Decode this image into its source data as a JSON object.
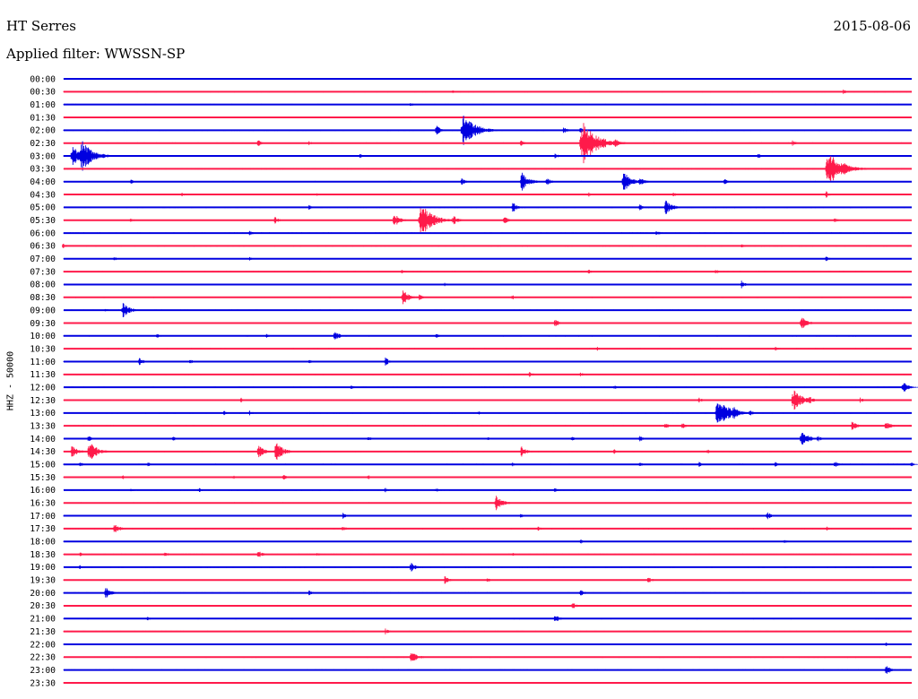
{
  "header": {
    "station": "HT Serres",
    "date": "2015-08-06",
    "filter": "Applied filter: WWSSN-SP"
  },
  "chart_data": {
    "type": "line",
    "title": "HT Serres",
    "ylabel": "HHZ - 50000",
    "colors": [
      "#0000e0",
      "#ff1a4a"
    ],
    "rows": [
      {
        "label": "00:00",
        "events": []
      },
      {
        "label": "00:30",
        "events": [
          [
            0.46,
            0.2
          ],
          [
            0.92,
            0.3
          ]
        ]
      },
      {
        "label": "01:00",
        "events": [
          [
            0.41,
            0.25
          ]
        ]
      },
      {
        "label": "01:30",
        "events": []
      },
      {
        "label": "02:00",
        "events": [
          [
            0.44,
            0.6
          ],
          [
            0.47,
            1.9
          ],
          [
            0.59,
            0.45
          ],
          [
            0.61,
            0.4
          ]
        ]
      },
      {
        "label": "02:30",
        "events": [
          [
            0.23,
            0.4
          ],
          [
            0.29,
            0.3
          ],
          [
            0.54,
            0.35
          ],
          [
            0.61,
            2.4
          ],
          [
            0.65,
            0.6
          ],
          [
            0.86,
            0.35
          ]
        ]
      },
      {
        "label": "03:00",
        "events": [
          [
            0.01,
            1.2
          ],
          [
            0.02,
            1.8
          ],
          [
            0.35,
            0.3
          ],
          [
            0.58,
            0.35
          ],
          [
            0.82,
            0.35
          ]
        ]
      },
      {
        "label": "03:30",
        "events": [
          [
            0.9,
            2.1
          ],
          [
            0.92,
            0.8
          ]
        ]
      },
      {
        "label": "04:00",
        "events": [
          [
            0.08,
            0.3
          ],
          [
            0.47,
            0.45
          ],
          [
            0.54,
            1.1
          ],
          [
            0.57,
            0.5
          ],
          [
            0.66,
            1.2
          ],
          [
            0.68,
            0.6
          ],
          [
            0.78,
            0.35
          ]
        ]
      },
      {
        "label": "04:30",
        "events": [
          [
            0.14,
            0.3
          ],
          [
            0.3,
            0.2
          ],
          [
            0.62,
            0.3
          ],
          [
            0.72,
            0.3
          ],
          [
            0.9,
            0.4
          ]
        ]
      },
      {
        "label": "05:00",
        "events": [
          [
            0.29,
            0.3
          ],
          [
            0.53,
            0.6
          ],
          [
            0.68,
            0.4
          ],
          [
            0.71,
            0.9
          ]
        ]
      },
      {
        "label": "05:30",
        "events": [
          [
            0.08,
            0.3
          ],
          [
            0.25,
            0.4
          ],
          [
            0.39,
            0.8
          ],
          [
            0.42,
            1.9
          ],
          [
            0.46,
            0.6
          ],
          [
            0.52,
            0.5
          ],
          [
            0.91,
            0.3
          ]
        ]
      },
      {
        "label": "06:00",
        "events": [
          [
            0.22,
            0.35
          ],
          [
            0.7,
            0.35
          ]
        ]
      },
      {
        "label": "06:30",
        "events": [
          [
            0.0,
            0.3
          ],
          [
            0.8,
            0.25
          ]
        ]
      },
      {
        "label": "07:00",
        "events": [
          [
            0.06,
            0.3
          ],
          [
            0.22,
            0.25
          ],
          [
            0.9,
            0.3
          ]
        ]
      },
      {
        "label": "07:30",
        "events": [
          [
            0.4,
            0.3
          ],
          [
            0.62,
            0.3
          ],
          [
            0.77,
            0.3
          ]
        ]
      },
      {
        "label": "08:00",
        "events": [
          [
            0.45,
            0.25
          ],
          [
            0.8,
            0.45
          ]
        ]
      },
      {
        "label": "08:30",
        "events": [
          [
            0.4,
            0.9
          ],
          [
            0.42,
            0.4
          ],
          [
            0.53,
            0.3
          ]
        ]
      },
      {
        "label": "09:00",
        "events": [
          [
            0.05,
            0.3
          ],
          [
            0.07,
            0.9
          ]
        ]
      },
      {
        "label": "09:30",
        "events": [
          [
            0.58,
            0.5
          ],
          [
            0.87,
            0.8
          ]
        ]
      },
      {
        "label": "10:00",
        "events": [
          [
            0.11,
            0.35
          ],
          [
            0.24,
            0.3
          ],
          [
            0.32,
            0.6
          ],
          [
            0.44,
            0.3
          ]
        ]
      },
      {
        "label": "10:30",
        "events": [
          [
            0.63,
            0.3
          ],
          [
            0.84,
            0.25
          ]
        ]
      },
      {
        "label": "11:00",
        "events": [
          [
            0.09,
            0.5
          ],
          [
            0.15,
            0.3
          ],
          [
            0.29,
            0.3
          ],
          [
            0.38,
            0.5
          ]
        ]
      },
      {
        "label": "11:30",
        "events": [
          [
            0.55,
            0.4
          ],
          [
            0.61,
            0.3
          ]
        ]
      },
      {
        "label": "12:00",
        "events": [
          [
            0.34,
            0.25
          ],
          [
            0.65,
            0.25
          ],
          [
            0.99,
            0.7
          ]
        ]
      },
      {
        "label": "12:30",
        "events": [
          [
            0.21,
            0.3
          ],
          [
            0.75,
            0.35
          ],
          [
            0.86,
            1.3
          ],
          [
            0.88,
            0.5
          ],
          [
            0.94,
            0.35
          ]
        ]
      },
      {
        "label": "13:00",
        "events": [
          [
            0.19,
            0.3
          ],
          [
            0.22,
            0.3
          ],
          [
            0.49,
            0.25
          ],
          [
            0.77,
            1.8
          ],
          [
            0.79,
            0.8
          ],
          [
            0.81,
            0.4
          ]
        ]
      },
      {
        "label": "13:30",
        "events": [
          [
            0.71,
            0.4
          ],
          [
            0.73,
            0.4
          ],
          [
            0.93,
            0.6
          ],
          [
            0.97,
            0.6
          ]
        ]
      },
      {
        "label": "14:00",
        "events": [
          [
            0.03,
            0.4
          ],
          [
            0.13,
            0.3
          ],
          [
            0.36,
            0.3
          ],
          [
            0.5,
            0.3
          ],
          [
            0.6,
            0.3
          ],
          [
            0.68,
            0.4
          ],
          [
            0.87,
            1.0
          ],
          [
            0.89,
            0.4
          ]
        ]
      },
      {
        "label": "14:30",
        "events": [
          [
            0.01,
            0.8
          ],
          [
            0.03,
            1.2
          ],
          [
            0.23,
            0.8
          ],
          [
            0.25,
            1.1
          ],
          [
            0.54,
            0.7
          ],
          [
            0.65,
            0.3
          ],
          [
            0.76,
            0.3
          ]
        ]
      },
      {
        "label": "15:00",
        "events": [
          [
            0.02,
            0.3
          ],
          [
            0.1,
            0.3
          ],
          [
            0.53,
            0.3
          ],
          [
            0.68,
            0.3
          ],
          [
            0.75,
            0.3
          ],
          [
            0.84,
            0.3
          ],
          [
            0.91,
            0.4
          ],
          [
            1.0,
            0.3
          ]
        ]
      },
      {
        "label": "15:30",
        "events": [
          [
            0.07,
            0.3
          ],
          [
            0.2,
            0.3
          ],
          [
            0.26,
            0.35
          ],
          [
            0.36,
            0.3
          ]
        ]
      },
      {
        "label": "16:00",
        "events": [
          [
            0.08,
            0.3
          ],
          [
            0.16,
            0.3
          ],
          [
            0.38,
            0.3
          ],
          [
            0.44,
            0.3
          ],
          [
            0.58,
            0.3
          ]
        ]
      },
      {
        "label": "16:30",
        "events": [
          [
            0.51,
            0.9
          ]
        ]
      },
      {
        "label": "17:00",
        "events": [
          [
            0.33,
            0.4
          ],
          [
            0.54,
            0.3
          ],
          [
            0.83,
            0.5
          ]
        ]
      },
      {
        "label": "17:30",
        "events": [
          [
            0.06,
            0.7
          ],
          [
            0.33,
            0.35
          ],
          [
            0.56,
            0.3
          ],
          [
            0.9,
            0.3
          ]
        ]
      },
      {
        "label": "18:00",
        "events": [
          [
            0.61,
            0.3
          ],
          [
            0.85,
            0.3
          ]
        ]
      },
      {
        "label": "18:30",
        "events": [
          [
            0.02,
            0.35
          ],
          [
            0.12,
            0.35
          ],
          [
            0.23,
            0.5
          ],
          [
            0.3,
            0.3
          ],
          [
            0.53,
            0.25
          ]
        ]
      },
      {
        "label": "19:00",
        "events": [
          [
            0.02,
            0.3
          ],
          [
            0.41,
            0.6
          ]
        ]
      },
      {
        "label": "19:30",
        "events": [
          [
            0.45,
            0.5
          ],
          [
            0.5,
            0.3
          ],
          [
            0.69,
            0.4
          ]
        ]
      },
      {
        "label": "20:00",
        "events": [
          [
            0.05,
            0.7
          ],
          [
            0.29,
            0.35
          ],
          [
            0.61,
            0.4
          ]
        ]
      },
      {
        "label": "20:30",
        "events": [
          [
            0.6,
            0.5
          ]
        ]
      },
      {
        "label": "21:00",
        "events": [
          [
            0.1,
            0.25
          ],
          [
            0.58,
            0.5
          ]
        ]
      },
      {
        "label": "21:30",
        "events": [
          [
            0.38,
            0.4
          ]
        ]
      },
      {
        "label": "22:00",
        "events": [
          [
            0.97,
            0.3
          ]
        ]
      },
      {
        "label": "22:30",
        "events": [
          [
            0.41,
            0.8
          ]
        ]
      },
      {
        "label": "23:00",
        "events": [
          [
            0.97,
            0.6
          ]
        ]
      },
      {
        "label": "23:30",
        "events": []
      }
    ]
  }
}
